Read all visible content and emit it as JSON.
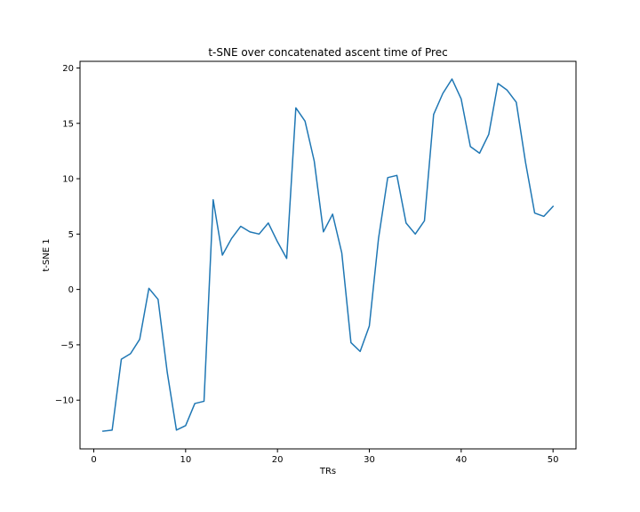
{
  "chart_data": {
    "type": "line",
    "title": "t-SNE over concatenated ascent time of Prec",
    "xlabel": "TRs",
    "ylabel": "t-SNE 1",
    "xlim": [
      -1.5,
      52.5
    ],
    "ylim": [
      -14.4,
      20.6
    ],
    "xticks": [
      0,
      10,
      20,
      30,
      40,
      50
    ],
    "yticks": [
      -10,
      -5,
      0,
      5,
      10,
      15,
      20
    ],
    "xtick_labels": [
      "0",
      "10",
      "20",
      "30",
      "40",
      "50"
    ],
    "ytick_labels": [
      "−10",
      "−5",
      "0",
      "5",
      "10",
      "15",
      "20"
    ],
    "grid": false,
    "legend": "none",
    "series": [
      {
        "color": "#1f77b4",
        "x": [
          1,
          2,
          3,
          4,
          5,
          6,
          7,
          8,
          9,
          10,
          11,
          12,
          13,
          14,
          15,
          16,
          17,
          18,
          19,
          20,
          21,
          22,
          23,
          24,
          25,
          26,
          27,
          28,
          29,
          30,
          31,
          32,
          33,
          34,
          35,
          36,
          37,
          38,
          39,
          40,
          41,
          42,
          43,
          44,
          45,
          46,
          47,
          48,
          49,
          50
        ],
        "values": [
          -12.8,
          -12.7,
          -6.3,
          -5.8,
          -4.5,
          0.1,
          -0.9,
          -7.5,
          -12.7,
          -12.3,
          -10.3,
          -10.1,
          8.1,
          3.1,
          4.6,
          5.7,
          5.2,
          5.0,
          6.0,
          4.3,
          2.8,
          16.4,
          15.2,
          11.6,
          5.2,
          6.8,
          3.3,
          -4.8,
          -5.6,
          -3.3,
          4.6,
          10.1,
          10.3,
          6.0,
          5.0,
          6.2,
          15.8,
          17.7,
          19.0,
          17.2,
          12.9,
          12.3,
          14.0,
          18.6,
          18.0,
          16.9,
          11.5,
          6.9,
          6.6,
          7.5
        ]
      }
    ]
  }
}
